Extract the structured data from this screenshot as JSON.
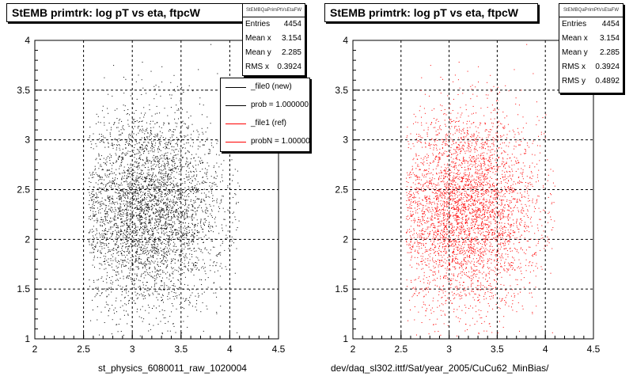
{
  "colors": {
    "left_points": "#000000",
    "right_points": "#ff0000",
    "legend_ref": "#ff0000",
    "legend_new": "#000000"
  },
  "chart_data": [
    {
      "type": "scatter",
      "title": "StEMB primtrk: log pT vs eta, ftpcW",
      "xlabel": "st_physics_6080011_raw_1020004",
      "ylabel": "",
      "xlim": [
        2,
        4.5
      ],
      "ylim": [
        1,
        4
      ],
      "xticks": [
        "2",
        "2.5",
        "3",
        "3.5",
        "4",
        "4.5"
      ],
      "yticks": [
        "1",
        "1.5",
        "2",
        "2.5",
        "3",
        "3.5",
        "4"
      ],
      "grid": true,
      "point_color": "#000000",
      "distribution": {
        "n_points": 4454,
        "mean_x": 3.154,
        "mean_y": 2.285,
        "rms_x": 0.3924,
        "rms_y": 0.4892
      },
      "stats": {
        "name": "StEMBQaPrimPtVsEtaFW",
        "rows": [
          {
            "label": "Entries",
            "value": "4454"
          },
          {
            "label": "Mean x",
            "value": "3.154"
          },
          {
            "label": "Mean y",
            "value": "2.285"
          },
          {
            "label": "RMS x",
            "value": "0.3924"
          }
        ]
      },
      "legend": [
        {
          "label": "_file0 (new)",
          "color": "#000000"
        },
        {
          "label": "prob = 1.000000",
          "color": "#000000"
        },
        {
          "label": "_file1 (ref)",
          "color": "#ff0000"
        },
        {
          "label": "probN = 1.000000",
          "color": "#ff0000"
        }
      ]
    },
    {
      "type": "scatter",
      "title": "StEMB primtrk: log pT vs eta, ftpcW",
      "xlabel": "dev/daq_sl302.ittf/Sat/year_2005/CuCu62_MinBias/",
      "ylabel": "",
      "xlim": [
        2,
        4.5
      ],
      "ylim": [
        1,
        4
      ],
      "xticks": [
        "2",
        "2.5",
        "3",
        "3.5",
        "4",
        "4.5"
      ],
      "yticks": [
        "1",
        "1.5",
        "2",
        "2.5",
        "3",
        "3.5",
        "4"
      ],
      "grid": true,
      "point_color": "#ff0000",
      "distribution": {
        "n_points": 4454,
        "mean_x": 3.154,
        "mean_y": 2.285,
        "rms_x": 0.3924,
        "rms_y": 0.4892
      },
      "stats": {
        "name": "StEMBQaPrimPtVsEtaFW",
        "rows": [
          {
            "label": "Entries",
            "value": "4454"
          },
          {
            "label": "Mean x",
            "value": "3.154"
          },
          {
            "label": "Mean y",
            "value": "2.285"
          },
          {
            "label": "RMS x",
            "value": "0.3924"
          },
          {
            "label": "RMS y",
            "value": "0.4892"
          }
        ]
      }
    }
  ]
}
